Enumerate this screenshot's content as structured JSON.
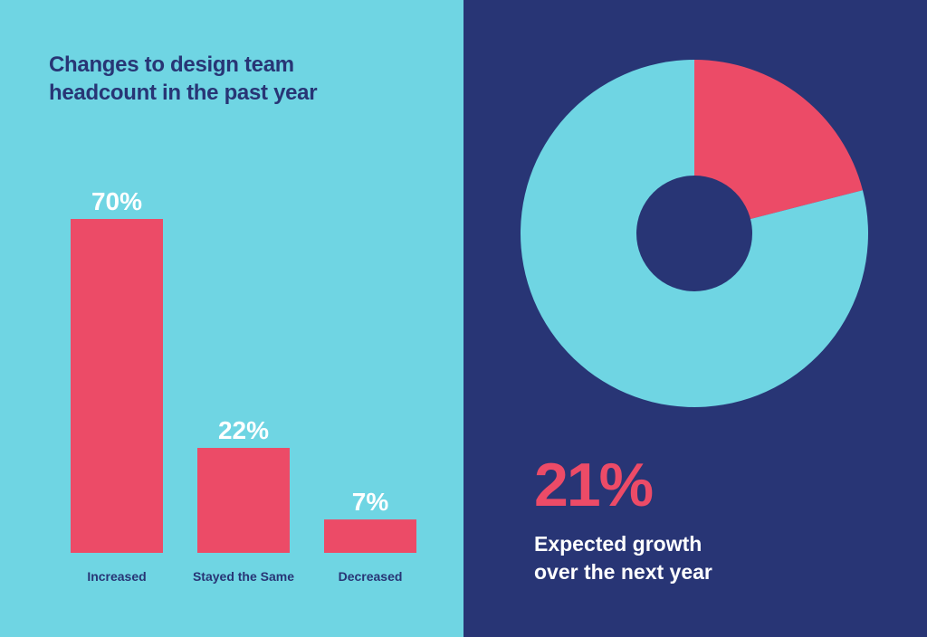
{
  "colors": {
    "left_background": "#6fd5e3",
    "right_background": "#283575",
    "bar": "#ec4b67",
    "title_text": "#283575",
    "value_text": "#ffffff",
    "donut_main": "#6fd5e3",
    "donut_highlight": "#ec4b67",
    "donut_hole": "#283575",
    "big_number": "#ec4b67",
    "caption_text": "#ffffff"
  },
  "left_panel": {
    "title_lines": [
      "Changes to design team",
      "headcount in the past year"
    ]
  },
  "right_panel": {
    "big_number": "21%",
    "caption_lines": [
      "Expected growth",
      "over the next year"
    ]
  },
  "chart_data": [
    {
      "type": "bar",
      "title": "Changes to design team headcount in the past year",
      "categories": [
        "Increased",
        "Stayed the Same",
        "Decreased"
      ],
      "values": [
        70,
        22,
        7
      ],
      "value_labels": [
        "70%",
        "22%",
        "7%"
      ],
      "ylim": [
        0,
        70
      ],
      "grid": false
    },
    {
      "type": "pie",
      "donut": true,
      "slices": [
        {
          "value": 21,
          "color": "#ec4b67"
        },
        {
          "value": 79,
          "color": "#6fd5e3"
        }
      ]
    }
  ]
}
